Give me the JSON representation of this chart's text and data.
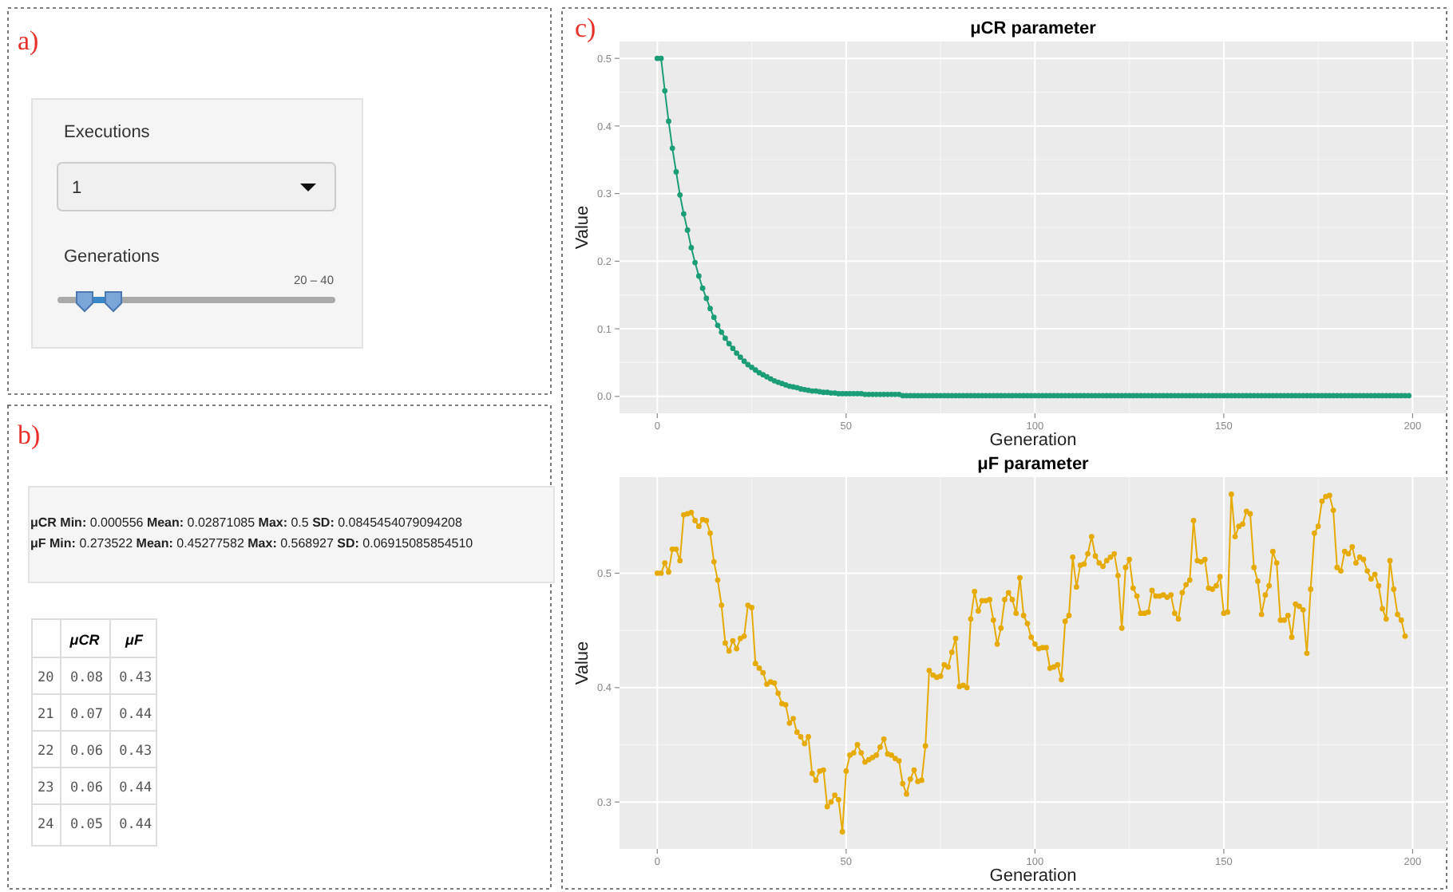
{
  "chart_data": [
    {
      "type": "other",
      "title": "a)",
      "annotations": [
        "Executions",
        "1",
        "Generations",
        "20 – 40"
      ]
    },
    {
      "type": "other",
      "title": "b)",
      "annotations": [
        "μCR Min: 0.000556 Mean: 0.02871085 Max: 0.5 SD: 0.0845454079094208",
        "μF Min: 0.273522 Mean: 0.45277582 Max: 0.568927 SD: 0.06915085854510",
        "μCR",
        "μF",
        "20",
        "0.08",
        "0.43",
        "21",
        "0.07",
        "0.44",
        "22",
        "0.06",
        "0.43",
        "23",
        "0.06",
        "0.44",
        "24",
        "0.05",
        "0.44"
      ]
    },
    {
      "type": "line",
      "title": "μCR parameter",
      "xlabel": "Generation",
      "ylabel": "Value",
      "annotations": [
        "c)"
      ],
      "xlim": [
        -10,
        209
      ],
      "xticks": [
        0,
        50,
        100,
        150,
        200
      ],
      "ylim": [
        -0.025,
        0.525
      ],
      "yticks": [
        {
          "value": 0,
          "label": "0.0"
        },
        0.1,
        0.2,
        0.3,
        0.4,
        0.5
      ],
      "grid": true,
      "marker": "circle",
      "series": [
        {
          "color": "#1b9e77",
          "x": [
            0,
            1,
            2,
            3,
            4,
            5,
            6,
            7,
            8,
            9,
            10,
            11,
            12,
            13,
            14,
            15,
            16,
            17,
            18,
            19,
            20,
            21,
            22,
            23,
            24,
            25,
            26,
            27,
            28,
            29,
            30,
            31,
            32,
            33,
            34,
            35,
            36,
            37,
            38,
            39,
            40,
            41,
            42,
            43,
            44,
            45,
            46,
            47,
            48,
            49,
            50,
            51,
            52,
            53,
            54,
            55,
            56,
            57,
            58,
            59,
            60,
            61,
            62,
            63,
            64,
            65,
            66,
            67,
            68,
            69,
            70,
            71,
            72,
            73,
            74,
            75,
            76,
            77,
            78,
            79,
            80,
            81,
            82,
            83,
            84,
            85,
            86,
            87,
            88,
            89,
            90,
            91,
            92,
            93,
            94,
            95,
            96,
            97,
            98,
            99,
            100,
            101,
            102,
            103,
            104,
            105,
            106,
            107,
            108,
            109,
            110,
            111,
            112,
            113,
            114,
            115,
            116,
            117,
            118,
            119,
            120,
            121,
            122,
            123,
            124,
            125,
            126,
            127,
            128,
            129,
            130,
            131,
            132,
            133,
            134,
            135,
            136,
            137,
            138,
            139,
            140,
            141,
            142,
            143,
            144,
            145,
            146,
            147,
            148,
            149,
            150,
            151,
            152,
            153,
            154,
            155,
            156,
            157,
            158,
            159,
            160,
            161,
            162,
            163,
            164,
            165,
            166,
            167,
            168,
            169,
            170,
            171,
            172,
            173,
            174,
            175,
            176,
            177,
            178,
            179,
            180,
            181,
            182,
            183,
            184,
            185,
            186,
            187,
            188,
            189,
            190,
            191,
            192,
            193,
            194,
            195,
            196,
            197,
            198,
            199
          ],
          "values": [
            0.5,
            0.5,
            0.452,
            0.407,
            0.367,
            0.332,
            0.298,
            0.27,
            0.246,
            0.22,
            0.198,
            0.178,
            0.16,
            0.145,
            0.13,
            0.117,
            0.105,
            0.095,
            0.086,
            0.078,
            0.071,
            0.064,
            0.058,
            0.052,
            0.047,
            0.043,
            0.039,
            0.035,
            0.032,
            0.029,
            0.026,
            0.023,
            0.021,
            0.019,
            0.017,
            0.015,
            0.014,
            0.013,
            0.011,
            0.01,
            0.009,
            0.008,
            0.008,
            0.007,
            0.006,
            0.006,
            0.005,
            0.005,
            0.004,
            0.004,
            0.004,
            0.004,
            0.004,
            0.004,
            0.004,
            0.003,
            0.003,
            0.003,
            0.003,
            0.003,
            0.003,
            0.003,
            0.003,
            0.003,
            0.003,
            0.001,
            0.001,
            0.001,
            0.001,
            0.001,
            0.001,
            0.001,
            0.001,
            0.001,
            0.001,
            0.001,
            0.001,
            0.001,
            0.001,
            0.001,
            0.001,
            0.001,
            0.001,
            0.001,
            0.001,
            0.001,
            0.001,
            0.001,
            0.001,
            0.001,
            0.001,
            0.001,
            0.001,
            0.001,
            0.001,
            0.001,
            0.001,
            0.001,
            0.001,
            0.001,
            0.001,
            0.001,
            0.001,
            0.001,
            0.001,
            0.001,
            0.001,
            0.001,
            0.001,
            0.001,
            0.001,
            0.001,
            0.001,
            0.001,
            0.001,
            0.001,
            0.001,
            0.001,
            0.001,
            0.001,
            0.001,
            0.001,
            0.001,
            0.001,
            0.001,
            0.001,
            0.001,
            0.001,
            0.001,
            0.001,
            0.001,
            0.001,
            0.001,
            0.001,
            0.001,
            0.001,
            0.001,
            0.001,
            0.001,
            0.001,
            0.001,
            0.001,
            0.001,
            0.001,
            0.001,
            0.001,
            0.001,
            0.001,
            0.001,
            0.001,
            0.001,
            0.001,
            0.001,
            0.001,
            0.001,
            0.001,
            0.001,
            0.001,
            0.001,
            0.001,
            0.001,
            0.001,
            0.001,
            0.001,
            0.001,
            0.001,
            0.001,
            0.001,
            0.001,
            0.001,
            0.001,
            0.001,
            0.001,
            0.001,
            0.001,
            0.001,
            0.001,
            0.001,
            0.001,
            0.001,
            0.001,
            0.001,
            0.001,
            0.001,
            0.001,
            0.001,
            0.001,
            0.001,
            0.001,
            0.001,
            0.001,
            0.001,
            0.001,
            0.001,
            0.001,
            0.001,
            0.001,
            0.001,
            0.001,
            0.001
          ]
        }
      ]
    },
    {
      "type": "line",
      "title": "μF parameter",
      "xlabel": "Generation",
      "ylabel": "Value",
      "xlim": [
        -10,
        209
      ],
      "xticks": [
        0,
        50,
        100,
        150,
        200
      ],
      "ylim": [
        0.259,
        0.584
      ],
      "yticks": [
        0.3,
        0.4,
        0.5
      ],
      "grid": true,
      "marker": "circle",
      "series": [
        {
          "color": "#e6ab02",
          "x": [
            0,
            1,
            2,
            3,
            4,
            5,
            6,
            7,
            8,
            9,
            10,
            11,
            12,
            13,
            14,
            15,
            16,
            17,
            18,
            19,
            20,
            21,
            22,
            23,
            24,
            25,
            26,
            27,
            28,
            29,
            30,
            31,
            32,
            33,
            34,
            35,
            36,
            37,
            38,
            39,
            40,
            41,
            42,
            43,
            44,
            45,
            46,
            47,
            48,
            49,
            50,
            51,
            52,
            53,
            54,
            55,
            56,
            57,
            58,
            59,
            60,
            61,
            62,
            63,
            64,
            65,
            66,
            67,
            68,
            69,
            70,
            71,
            72,
            73,
            74,
            75,
            76,
            77,
            78,
            79,
            80,
            81,
            82,
            83,
            84,
            85,
            86,
            87,
            88,
            89,
            90,
            91,
            92,
            93,
            94,
            95,
            96,
            97,
            98,
            99,
            100,
            101,
            102,
            103,
            104,
            105,
            106,
            107,
            108,
            109,
            110,
            111,
            112,
            113,
            114,
            115,
            116,
            117,
            118,
            119,
            120,
            121,
            122,
            123,
            124,
            125,
            126,
            127,
            128,
            129,
            130,
            131,
            132,
            133,
            134,
            135,
            136,
            137,
            138,
            139,
            140,
            141,
            142,
            143,
            144,
            145,
            146,
            147,
            148,
            149,
            150,
            151,
            152,
            153,
            154,
            155,
            156,
            157,
            158,
            159,
            160,
            161,
            162,
            163,
            164,
            165,
            166,
            167,
            168,
            169,
            170,
            171,
            172,
            173,
            174,
            175,
            176,
            177,
            178,
            179,
            180,
            181,
            182,
            183,
            184,
            185,
            186,
            187,
            188,
            189,
            190,
            191,
            192,
            193,
            194,
            195,
            196,
            197,
            198
          ],
          "values": [
            0.5,
            0.5,
            0.509,
            0.501,
            0.521,
            0.521,
            0.511,
            0.551,
            0.552,
            0.553,
            0.546,
            0.541,
            0.547,
            0.546,
            0.535,
            0.51,
            0.494,
            0.472,
            0.439,
            0.432,
            0.441,
            0.434,
            0.443,
            0.445,
            0.472,
            0.47,
            0.421,
            0.417,
            0.413,
            0.403,
            0.405,
            0.404,
            0.395,
            0.386,
            0.385,
            0.369,
            0.373,
            0.361,
            0.357,
            0.351,
            0.357,
            0.325,
            0.319,
            0.327,
            0.328,
            0.296,
            0.3,
            0.306,
            0.302,
            0.274,
            0.327,
            0.341,
            0.343,
            0.35,
            0.343,
            0.335,
            0.337,
            0.339,
            0.341,
            0.348,
            0.355,
            0.342,
            0.341,
            0.338,
            0.336,
            0.316,
            0.307,
            0.32,
            0.328,
            0.318,
            0.319,
            0.349,
            0.415,
            0.411,
            0.409,
            0.41,
            0.42,
            0.418,
            0.431,
            0.443,
            0.401,
            0.402,
            0.4,
            0.46,
            0.484,
            0.467,
            0.476,
            0.476,
            0.477,
            0.459,
            0.438,
            0.452,
            0.477,
            0.483,
            0.477,
            0.465,
            0.496,
            0.463,
            0.456,
            0.444,
            0.438,
            0.434,
            0.435,
            0.435,
            0.417,
            0.418,
            0.42,
            0.407,
            0.458,
            0.463,
            0.514,
            0.488,
            0.507,
            0.508,
            0.517,
            0.532,
            0.515,
            0.509,
            0.506,
            0.511,
            0.514,
            0.517,
            0.498,
            0.452,
            0.505,
            0.512,
            0.487,
            0.48,
            0.465,
            0.465,
            0.466,
            0.485,
            0.48,
            0.48,
            0.481,
            0.479,
            0.481,
            0.465,
            0.46,
            0.483,
            0.49,
            0.494,
            0.546,
            0.511,
            0.51,
            0.512,
            0.487,
            0.486,
            0.489,
            0.497,
            0.465,
            0.466,
            0.569,
            0.532,
            0.541,
            0.543,
            0.554,
            0.552,
            0.505,
            0.493,
            0.464,
            0.481,
            0.489,
            0.519,
            0.509,
            0.459,
            0.459,
            0.463,
            0.444,
            0.473,
            0.471,
            0.468,
            0.43,
            0.486,
            0.535,
            0.541,
            0.563,
            0.567,
            0.568,
            0.555,
            0.505,
            0.502,
            0.519,
            0.517,
            0.523,
            0.509,
            0.514,
            0.512,
            0.502,
            0.495,
            0.499,
            0.489,
            0.469,
            0.46,
            0.511,
            0.486,
            0.464,
            0.459,
            0.445
          ]
        }
      ]
    }
  ]
}
